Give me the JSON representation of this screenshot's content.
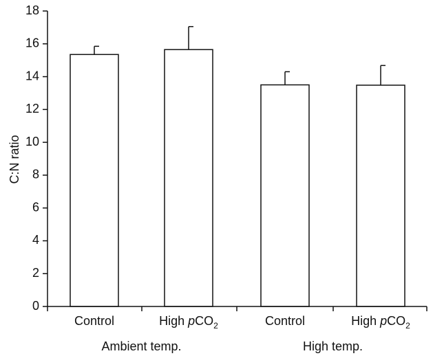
{
  "chart_data": {
    "type": "bar",
    "ylabel": "C:N ratio",
    "ylim": [
      0,
      18
    ],
    "yticks": [
      0,
      2,
      4,
      6,
      8,
      10,
      12,
      14,
      16,
      18
    ],
    "categories": [
      {
        "prefix": "Control",
        "italic": "",
        "main": "",
        "sub": ""
      },
      {
        "prefix": "High ",
        "italic": "p",
        "main": "CO",
        "sub": "2"
      },
      {
        "prefix": "Control",
        "italic": "",
        "main": "",
        "sub": ""
      },
      {
        "prefix": "High ",
        "italic": "p",
        "main": "CO",
        "sub": "2"
      }
    ],
    "groups": [
      {
        "label": "Ambient temp.",
        "members": [
          0,
          1
        ]
      },
      {
        "label": "High temp.",
        "members": [
          2,
          3
        ]
      }
    ],
    "values": [
      15.35,
      15.65,
      13.5,
      13.48
    ],
    "errors": [
      0.5,
      1.4,
      0.8,
      1.2
    ],
    "grid": false,
    "bar_fill": "#ffffff",
    "bar_stroke": "#111111"
  }
}
